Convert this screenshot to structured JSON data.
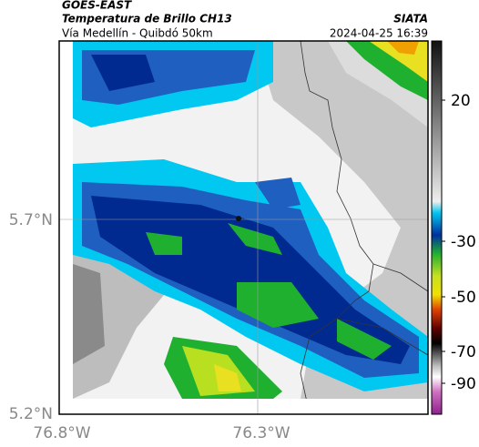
{
  "header": {
    "source": "GOES-EAST",
    "title": "Temperatura de Brillo CH13",
    "subtitle": "Vía Medellín - Quibdó 50km",
    "credit": "SIATA",
    "timestamp": "2024-04-25 16:39"
  },
  "lat_ticks": [
    "5.7°N",
    "5.2°N"
  ],
  "lon_ticks": [
    "76.8°W",
    "76.3°W"
  ],
  "colorbar": {
    "ticks": [
      20,
      -30,
      -50,
      -70,
      -90
    ]
  }
}
